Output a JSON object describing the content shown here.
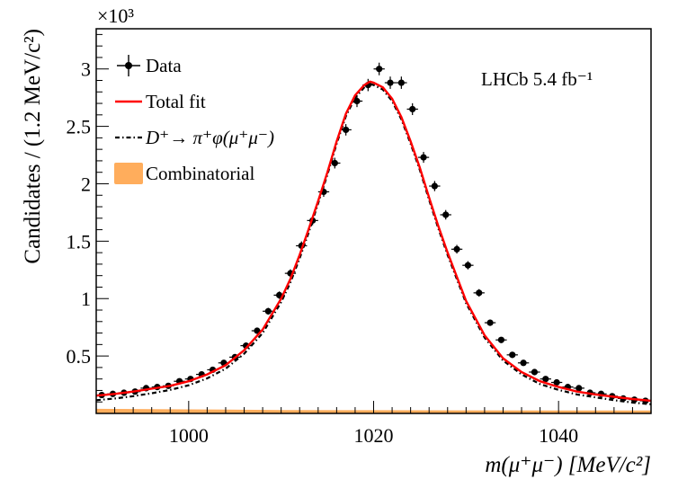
{
  "chart_data": {
    "type": "scatter",
    "title": "",
    "xlabel": "m(μ⁺μ⁻) [MeV/c²]",
    "ylabel": "Candidates / (1.2 MeV/c²)",
    "y_multiplier_label": "×10³",
    "x_range": [
      990,
      1050
    ],
    "y_range": [
      0,
      3.35
    ],
    "x_ticks": [
      1000,
      1020,
      1040
    ],
    "x_tick_labels": [
      "1000",
      "1020",
      "1040"
    ],
    "y_ticks": [
      0.5,
      1,
      1.5,
      2,
      2.5,
      3
    ],
    "y_tick_labels": [
      "0.5",
      "1",
      "1.5",
      "2",
      "2.5",
      "3"
    ],
    "bin_width": 1.2,
    "annotation": "LHCb 5.4 fb⁻¹",
    "legend": [
      {
        "label": "Data",
        "style": "points-with-error-bars",
        "color": "#000000"
      },
      {
        "label": "Total fit",
        "style": "solid-line",
        "color": "#ff0000"
      },
      {
        "label": "D⁺→ π⁺φ(μ⁺μ⁻)",
        "style": "dash-dot-line",
        "color": "#000000"
      },
      {
        "label": "Combinatorial",
        "style": "filled-area",
        "color": "#ffad5c"
      }
    ],
    "series": [
      {
        "name": "Data",
        "x": [
          990.6,
          991.8,
          993.0,
          994.2,
          995.4,
          996.6,
          997.8,
          999.0,
          1000.2,
          1001.4,
          1002.6,
          1003.8,
          1005.0,
          1006.2,
          1007.4,
          1008.6,
          1009.8,
          1011.0,
          1012.2,
          1013.4,
          1014.6,
          1015.8,
          1017.0,
          1018.2,
          1019.4,
          1020.6,
          1021.8,
          1023.0,
          1024.2,
          1025.4,
          1026.6,
          1027.8,
          1029.0,
          1030.2,
          1031.4,
          1032.6,
          1033.8,
          1035.0,
          1036.2,
          1037.4,
          1038.6,
          1039.8,
          1041.0,
          1042.2,
          1043.4,
          1044.6,
          1045.8,
          1047.0,
          1048.2,
          1049.4
        ],
        "values": [
          0.16,
          0.17,
          0.18,
          0.19,
          0.22,
          0.23,
          0.24,
          0.28,
          0.3,
          0.34,
          0.38,
          0.44,
          0.49,
          0.59,
          0.72,
          0.89,
          1.03,
          1.22,
          1.46,
          1.68,
          1.93,
          2.18,
          2.47,
          2.72,
          2.86,
          3.0,
          2.88,
          2.88,
          2.65,
          2.23,
          1.98,
          1.73,
          1.43,
          1.29,
          1.05,
          0.79,
          0.64,
          0.51,
          0.44,
          0.36,
          0.3,
          0.27,
          0.23,
          0.22,
          0.18,
          0.17,
          0.15,
          0.13,
          0.12,
          0.11
        ]
      },
      {
        "name": "Total fit",
        "x": [
          990,
          992,
          994,
          996,
          998,
          1000,
          1002,
          1004,
          1006,
          1008,
          1010,
          1011,
          1012,
          1013,
          1014,
          1015,
          1016,
          1017,
          1018,
          1019,
          1019.6,
          1020,
          1021,
          1022,
          1023,
          1024,
          1025,
          1026,
          1027,
          1028,
          1030,
          1032,
          1034,
          1036,
          1038,
          1040,
          1042,
          1044,
          1046,
          1048,
          1050
        ],
        "values": [
          0.155,
          0.17,
          0.19,
          0.215,
          0.24,
          0.28,
          0.34,
          0.42,
          0.55,
          0.73,
          1.0,
          1.17,
          1.38,
          1.61,
          1.85,
          2.1,
          2.37,
          2.61,
          2.77,
          2.86,
          2.89,
          2.88,
          2.84,
          2.74,
          2.58,
          2.37,
          2.14,
          1.88,
          1.63,
          1.4,
          0.98,
          0.68,
          0.48,
          0.36,
          0.28,
          0.23,
          0.19,
          0.165,
          0.145,
          0.125,
          0.11
        ]
      },
      {
        "name": "D⁺→ π⁺φ(μ⁺μ⁻)",
        "x": [
          990,
          992,
          994,
          996,
          998,
          1000,
          1002,
          1004,
          1006,
          1008,
          1010,
          1011,
          1012,
          1013,
          1014,
          1015,
          1016,
          1017,
          1018,
          1019,
          1019.6,
          1020,
          1021,
          1022,
          1023,
          1024,
          1025,
          1026,
          1027,
          1028,
          1030,
          1032,
          1034,
          1036,
          1038,
          1040,
          1042,
          1044,
          1046,
          1048,
          1050
        ],
        "values": [
          0.115,
          0.13,
          0.15,
          0.175,
          0.205,
          0.245,
          0.305,
          0.39,
          0.52,
          0.7,
          0.97,
          1.14,
          1.35,
          1.58,
          1.83,
          2.08,
          2.35,
          2.59,
          2.75,
          2.84,
          2.87,
          2.86,
          2.82,
          2.72,
          2.56,
          2.35,
          2.12,
          1.86,
          1.61,
          1.38,
          0.96,
          0.66,
          0.46,
          0.34,
          0.255,
          0.205,
          0.165,
          0.14,
          0.115,
          0.095,
          0.08
        ]
      },
      {
        "name": "Combinatorial",
        "x": [
          990,
          1000,
          1010,
          1020,
          1030,
          1040,
          1050
        ],
        "values": [
          0.04,
          0.035,
          0.03,
          0.028,
          0.027,
          0.026,
          0.025
        ]
      }
    ]
  }
}
